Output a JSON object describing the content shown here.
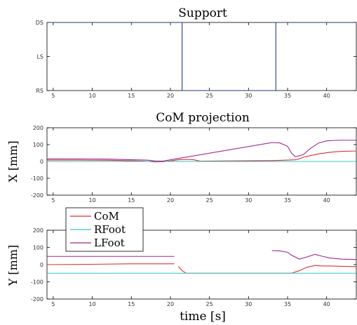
{
  "chart_data": [
    {
      "type": "line",
      "title": "Support",
      "ylabel": "",
      "xlabel": "",
      "xlim": [
        4.2,
        43.8
      ],
      "ylim": [
        0,
        2
      ],
      "xticks": [
        5,
        10,
        15,
        20,
        25,
        30,
        35,
        40
      ],
      "yticks": [
        0,
        1,
        2
      ],
      "ytick_labels": [
        "RS",
        "LS",
        "DS"
      ],
      "series": [
        {
          "color": "#1f3d99",
          "x": [
            4.2,
            21.5,
            21.5,
            33.5,
            33.5,
            43.8
          ],
          "y": [
            2,
            2,
            0,
            0,
            2,
            2
          ]
        }
      ]
    },
    {
      "type": "line",
      "title": "CoM projection",
      "ylabel": "X [mm]",
      "xlabel": "",
      "xlim": [
        4.2,
        43.8
      ],
      "ylim": [
        -200,
        200
      ],
      "xticks": [
        5,
        10,
        15,
        20,
        25,
        30,
        35,
        40
      ],
      "yticks": [
        -200,
        -100,
        0,
        100,
        200
      ],
      "series": [
        {
          "name": "CoM",
          "color": "#e03030",
          "x": [
            4.2,
            8,
            12,
            15,
            16.5,
            18,
            19,
            20,
            21,
            22,
            23,
            23.8,
            33,
            35,
            36,
            36.5,
            37,
            38,
            39,
            40,
            41,
            42,
            43.8
          ],
          "y": [
            8,
            8,
            7,
            4,
            2,
            -3,
            -2,
            3,
            10,
            12,
            10,
            2,
            5,
            8,
            10,
            15,
            25,
            35,
            45,
            52,
            57,
            60,
            62
          ]
        },
        {
          "name": "RFoot",
          "color": "#30c8c8",
          "x": [
            4.2,
            43.8
          ],
          "y": [
            0,
            0
          ]
        },
        {
          "name": "LFoot",
          "color": "#a02890",
          "x": [
            4.2,
            8,
            12,
            15,
            17,
            18,
            19,
            33,
            34,
            35,
            35.5,
            36,
            37,
            38,
            39,
            40,
            41,
            42,
            43.8
          ],
          "y": [
            15,
            15,
            14,
            10,
            8,
            3,
            2,
            112,
            110,
            90,
            50,
            28,
            40,
            80,
            110,
            122,
            125,
            126,
            126
          ]
        }
      ]
    },
    {
      "type": "line",
      "title": "",
      "ylabel": "Y [mm]",
      "xlabel": "time [s]",
      "xlim": [
        4.2,
        43.8
      ],
      "ylim": [
        -200,
        200
      ],
      "xticks": [
        5,
        10,
        15,
        20,
        25,
        30,
        35,
        40
      ],
      "yticks": [
        -200,
        -100,
        0,
        100,
        200
      ],
      "legend": {
        "placement": "top-left",
        "entries": [
          {
            "label": "CoM",
            "color": "#e03030"
          },
          {
            "label": "RFoot",
            "color": "#30c8c8"
          },
          {
            "label": "LFoot",
            "color": "#a02890"
          }
        ]
      },
      "series": [
        {
          "name": "CoM",
          "color": "#e03030",
          "x": [
            4.2,
            10,
            15,
            20.5,
            21,
            21.5,
            22,
            35.5,
            36.5,
            37.5,
            38.5,
            39.5,
            40.5,
            42,
            43.8
          ],
          "y": [
            0,
            2,
            5,
            5,
            -10,
            -35,
            -50,
            -50,
            -35,
            -15,
            -5,
            -8,
            -8,
            -10,
            -12
          ],
          "gaps_after_index": [
            3
          ]
        },
        {
          "name": "RFoot",
          "color": "#30c8c8",
          "x": [
            4.2,
            43.8
          ],
          "y": [
            -50,
            -50
          ]
        },
        {
          "name": "LFoot",
          "color": "#a02890",
          "x": [
            4.2,
            20.5,
            33,
            34,
            35,
            35.5,
            36.5,
            37.5,
            38.5,
            39.5,
            40.5,
            42,
            43.8
          ],
          "y": [
            48,
            48,
            82,
            80,
            72,
            55,
            32,
            45,
            60,
            48,
            38,
            32,
            30
          ],
          "gaps_after_index": [
            1
          ]
        }
      ]
    }
  ]
}
